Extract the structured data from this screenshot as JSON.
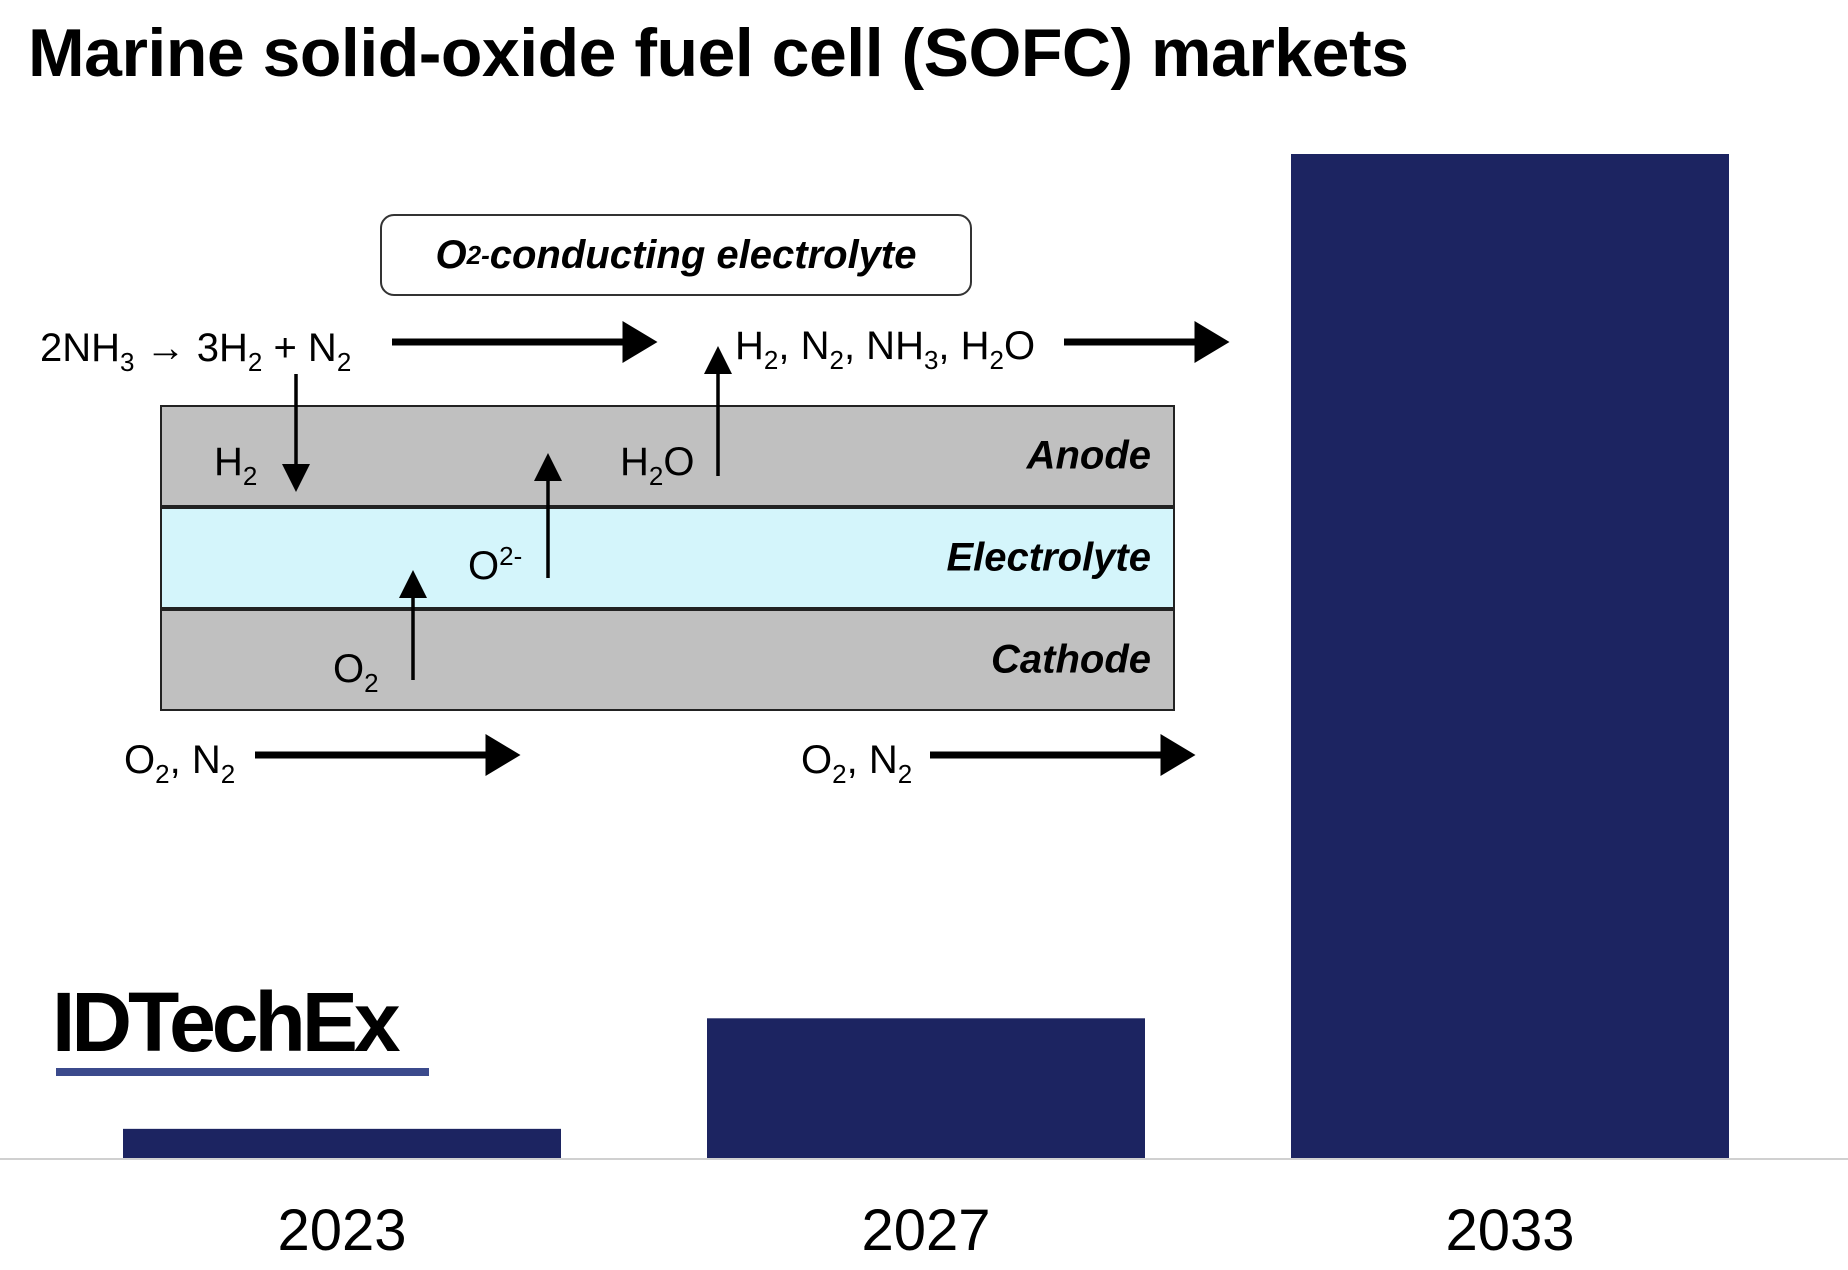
{
  "title": "Marine solid-oxide fuel cell (SOFC) markets",
  "chart_data": {
    "type": "bar",
    "categories": [
      "2023",
      "2027",
      "2033"
    ],
    "values": [
      3,
      14,
      100
    ],
    "value_note": "relative bar heights (tallest = 100); no numeric axis shown",
    "ylim": [
      0,
      100
    ],
    "grid": false,
    "bar_color": "#1c2461"
  },
  "diagram": {
    "electrolyte_box": {
      "pre": "O",
      "sup": "2-",
      "post": " conducting electrolyte"
    },
    "layers": {
      "anode": "Anode",
      "electrolyte": "Electrolyte",
      "cathode": "Cathode"
    },
    "labels": {
      "reaction": {
        "t1": "2NH",
        "s1": "3",
        "t2": " → 3H",
        "s2": "2",
        "t3": " + N",
        "s3": "2"
      },
      "exhaust": {
        "t1": "H",
        "s1": "2",
        "t2": ", N",
        "s2": "2",
        "t3": ", NH",
        "s3": "3",
        "t4": ", H",
        "s4": "2",
        "t5": "O"
      },
      "h2": {
        "t1": "H",
        "s1": "2"
      },
      "h2o": {
        "t1": "H",
        "s1": "2",
        "t2": "O"
      },
      "o2minus": {
        "t1": "O",
        "sup": "2-"
      },
      "o2": {
        "t1": "O",
        "s1": "2"
      },
      "air_in": {
        "t1": "O",
        "s1": "2",
        "t2": ", N",
        "s2": "2"
      },
      "air_out": {
        "t1": "O",
        "s1": "2",
        "t2": ", N",
        "s2": "2"
      }
    },
    "colors": {
      "anode": "#c0c0c0",
      "electrolyte": "#d4f5fb",
      "cathode": "#c0c0c0"
    }
  },
  "logo": {
    "text": "IDTechEx",
    "bar_color": "#3b4a8c"
  }
}
